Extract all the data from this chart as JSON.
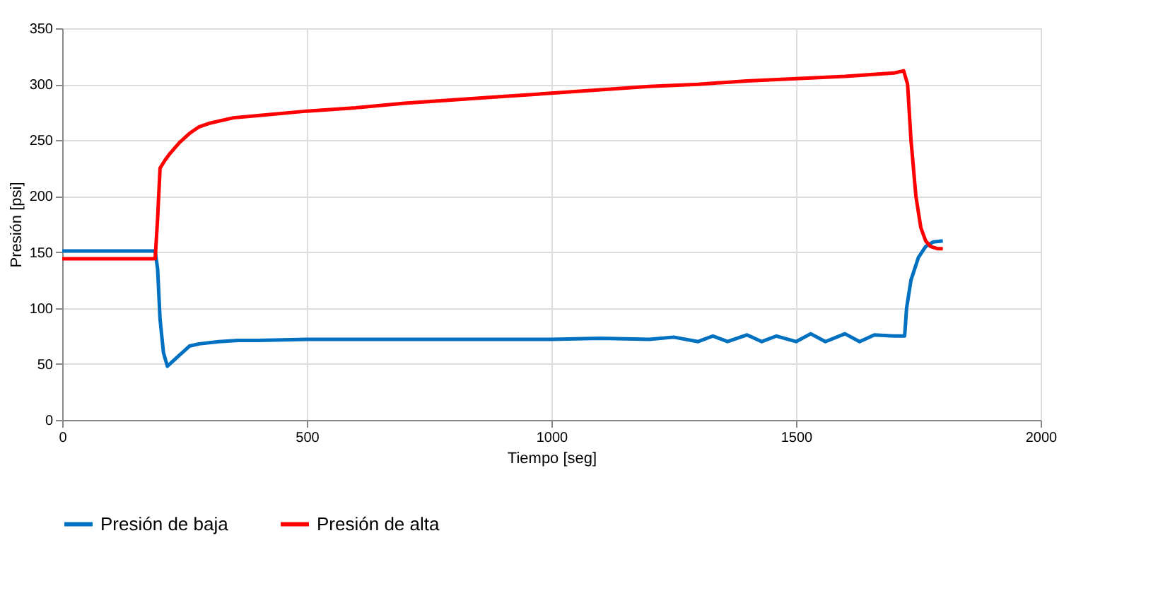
{
  "chart_data": {
    "type": "line",
    "xlabel": "Tiempo [seg]",
    "ylabel": "Presión [psi]",
    "xlim": [
      0,
      2000
    ],
    "xticks": [
      0,
      500,
      1000,
      1500,
      2000
    ],
    "ylim": [
      0,
      350
    ],
    "yticks": [
      0,
      50,
      100,
      150,
      200,
      250,
      300,
      350
    ],
    "grid": true,
    "legend": "bottom",
    "line_style": "solid",
    "marker": "none",
    "series": [
      {
        "name": "Presión de baja",
        "color": "#0070c0",
        "x": [
          0,
          100,
          190,
          195,
          200,
          207,
          215,
          225,
          240,
          260,
          280,
          320,
          360,
          400,
          500,
          600,
          700,
          800,
          900,
          1000,
          1100,
          1200,
          1250,
          1300,
          1330,
          1360,
          1400,
          1430,
          1460,
          1500,
          1530,
          1560,
          1600,
          1630,
          1660,
          1700,
          1722,
          1726,
          1735,
          1750,
          1765,
          1780,
          1800
        ],
        "values": [
          151,
          151,
          151,
          135,
          90,
          60,
          48,
          52,
          58,
          66,
          68,
          70,
          71,
          71,
          72,
          72,
          72,
          72,
          72,
          72,
          73,
          72,
          74,
          70,
          75,
          70,
          76,
          70,
          75,
          70,
          77,
          70,
          77,
          70,
          76,
          75,
          75,
          100,
          125,
          145,
          155,
          159,
          160
        ]
      },
      {
        "name": "Presión de alta",
        "color": "#ff0000",
        "x": [
          0,
          100,
          190,
          195,
          200,
          210,
          220,
          240,
          260,
          280,
          300,
          350,
          400,
          500,
          600,
          700,
          800,
          900,
          1000,
          1100,
          1200,
          1300,
          1400,
          1500,
          1600,
          1700,
          1720,
          1728,
          1735,
          1745,
          1755,
          1765,
          1775,
          1790,
          1800
        ],
        "values": [
          144,
          144,
          144,
          180,
          225,
          232,
          238,
          248,
          256,
          262,
          265,
          270,
          272,
          276,
          279,
          283,
          286,
          289,
          292,
          295,
          298,
          300,
          303,
          305,
          307,
          310,
          312,
          300,
          250,
          200,
          172,
          160,
          155,
          153,
          153
        ]
      }
    ]
  }
}
